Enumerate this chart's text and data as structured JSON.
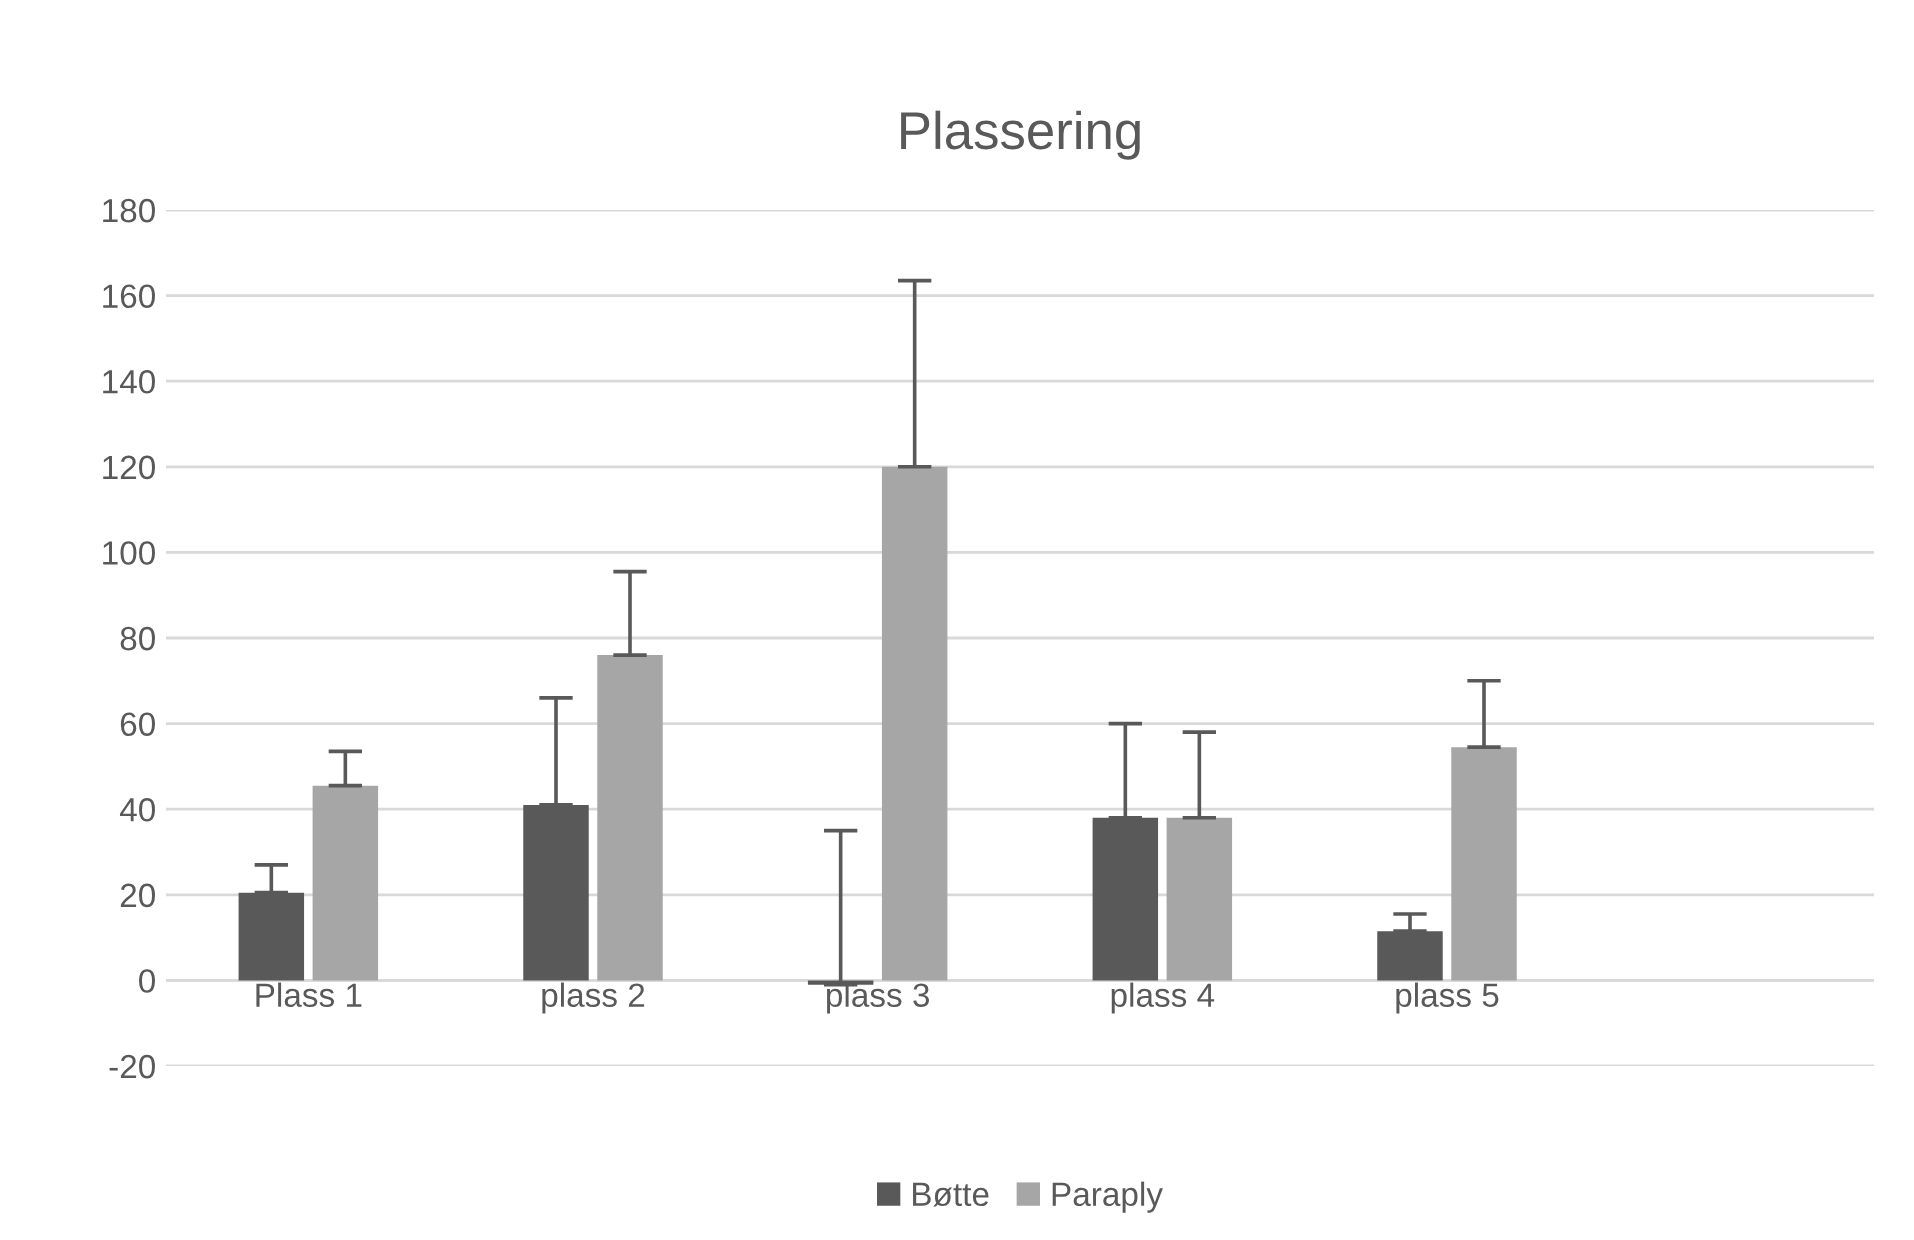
{
  "chart_data": {
    "type": "bar",
    "title": "Plassering",
    "categories": [
      "Plass 1",
      "plass 2",
      "plass 3",
      "plass 4",
      "plass 5",
      null
    ],
    "series": [
      {
        "name": "Bøtte",
        "color": "#595959",
        "values": [
          20.5,
          41,
          -1,
          38,
          11.5,
          null
        ],
        "errors": [
          [
            20.5,
            27
          ],
          [
            41,
            66
          ],
          [
            -1,
            35
          ],
          [
            38,
            60
          ],
          [
            11.5,
            15.5
          ],
          null
        ]
      },
      {
        "name": "Paraply",
        "color": "#a6a6a6",
        "values": [
          45.5,
          76,
          120,
          38,
          54.5,
          null
        ],
        "errors": [
          [
            45.5,
            53.5
          ],
          [
            76,
            95.5
          ],
          [
            120,
            163.5
          ],
          [
            38,
            58
          ],
          [
            54.5,
            70
          ],
          null
        ]
      }
    ],
    "ylim": [
      -20,
      180
    ],
    "yticks": [
      -20,
      0,
      20,
      40,
      60,
      80,
      100,
      120,
      140,
      160,
      180
    ],
    "grid": "y",
    "legend": "bottom"
  }
}
